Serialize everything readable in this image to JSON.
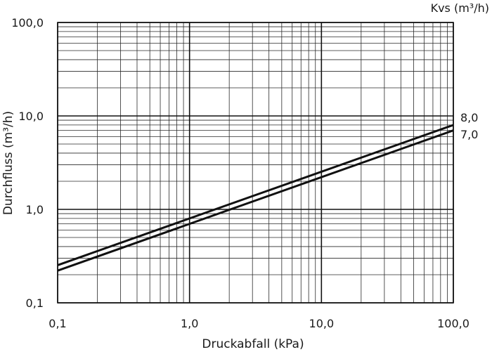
{
  "chart_data": {
    "type": "line",
    "xscale": "log",
    "yscale": "log",
    "xlabel": "Druckabfall (kPa)",
    "ylabel": "Durchfluss (m³/h)",
    "xlim": [
      0.1,
      100
    ],
    "ylim": [
      0.1,
      100
    ],
    "x_ticks": [
      {
        "value": 0.1,
        "label": "0,1"
      },
      {
        "value": 1,
        "label": "1,0"
      },
      {
        "value": 10,
        "label": "10,0"
      },
      {
        "value": 100,
        "label": "100,0"
      }
    ],
    "y_ticks": [
      {
        "value": 0.1,
        "label": "0,1"
      },
      {
        "value": 1,
        "label": "1,0"
      },
      {
        "value": 10,
        "label": "10,0"
      },
      {
        "value": 100,
        "label": "100,0"
      }
    ],
    "grid": true,
    "series_group_title": "Kvs (m³/h)",
    "series": [
      {
        "name": "8,0",
        "x": [
          0.1,
          100
        ],
        "y": [
          0.253,
          8.0
        ]
      },
      {
        "name": "7,0",
        "x": [
          0.1,
          100
        ],
        "y": [
          0.221,
          7.0
        ]
      }
    ]
  }
}
